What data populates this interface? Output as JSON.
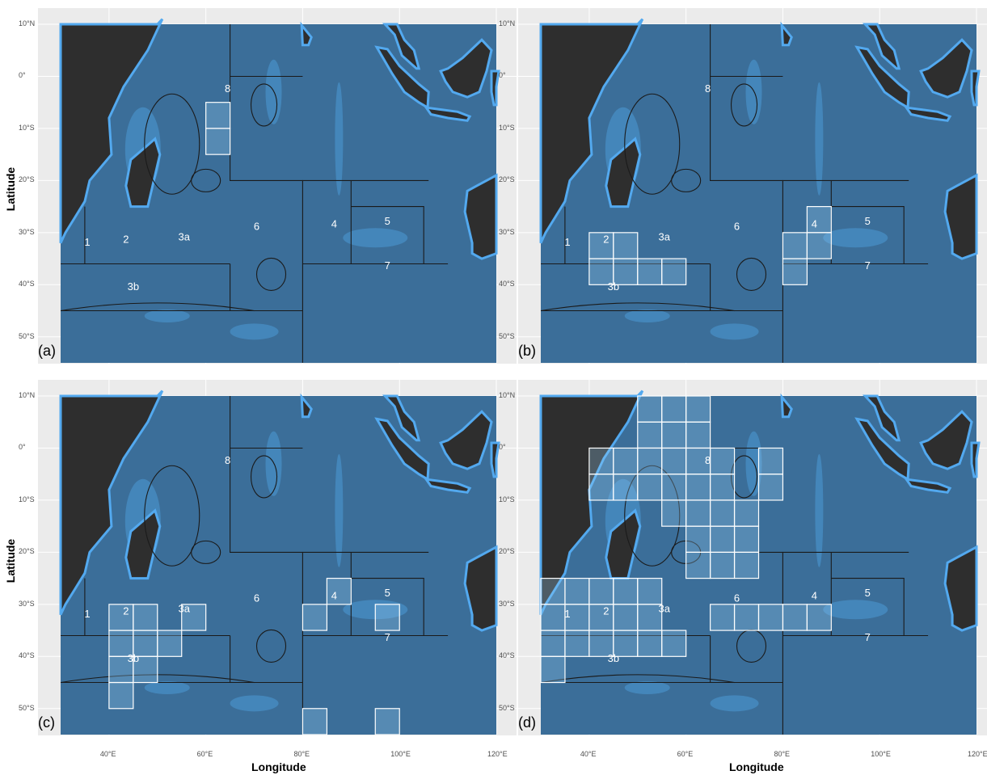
{
  "figure": {
    "x_axis_title": "Longitude",
    "y_axis_title": "Latitude",
    "lon_ticks": [
      "40°E",
      "60°E",
      "80°E",
      "100°E",
      "120°E"
    ],
    "lat_ticks": [
      "10°N",
      "0°",
      "10°S",
      "20°S",
      "30°S",
      "40°S",
      "50°S"
    ],
    "lon_range": [
      28,
      120
    ],
    "lat_range": [
      -55,
      10
    ],
    "grid": true,
    "land_color": "#2e2e2e",
    "ocean_color": "#3b6e99",
    "shallow_color": "#53a9ef",
    "cell_outline_color": "#ffffff"
  },
  "regions": [
    {
      "label": "1",
      "lon": 35.5,
      "lat": -32.5
    },
    {
      "label": "2",
      "lon": 43.5,
      "lat": -32
    },
    {
      "label": "3a",
      "lon": 55.5,
      "lat": -31.5
    },
    {
      "label": "3b",
      "lon": 45,
      "lat": -41
    },
    {
      "label": "4",
      "lon": 86.5,
      "lat": -29
    },
    {
      "label": "5",
      "lon": 97.5,
      "lat": -28.5
    },
    {
      "label": "6",
      "lon": 70.5,
      "lat": -29.5
    },
    {
      "label": "7",
      "lon": 97.5,
      "lat": -37
    },
    {
      "label": "8",
      "lon": 64.5,
      "lat": -3
    }
  ],
  "panels": [
    {
      "label": "(a)",
      "cells": [
        [
          60,
          -5
        ],
        [
          60,
          -10
        ]
      ]
    },
    {
      "label": "(b)",
      "cells": [
        [
          40,
          -30
        ],
        [
          45,
          -30
        ],
        [
          40,
          -35
        ],
        [
          45,
          -35
        ],
        [
          50,
          -35
        ],
        [
          55,
          -35
        ],
        [
          85,
          -25
        ],
        [
          80,
          -30
        ],
        [
          85,
          -30
        ],
        [
          80,
          -35
        ]
      ]
    },
    {
      "label": "(c)",
      "cells": [
        [
          40,
          -30
        ],
        [
          45,
          -30
        ],
        [
          55,
          -30
        ],
        [
          40,
          -35
        ],
        [
          45,
          -35
        ],
        [
          50,
          -35
        ],
        [
          40,
          -40
        ],
        [
          45,
          -40
        ],
        [
          40,
          -45
        ],
        [
          85,
          -25
        ],
        [
          80,
          -30
        ],
        [
          95,
          -30
        ],
        [
          80,
          -50
        ],
        [
          95,
          -50
        ]
      ]
    },
    {
      "label": "(d)",
      "cells": [
        [
          50,
          10
        ],
        [
          55,
          10
        ],
        [
          60,
          10
        ],
        [
          50,
          5
        ],
        [
          55,
          5
        ],
        [
          60,
          5
        ],
        [
          40,
          0
        ],
        [
          45,
          0
        ],
        [
          50,
          0
        ],
        [
          55,
          0
        ],
        [
          60,
          0
        ],
        [
          65,
          0
        ],
        [
          75,
          0
        ],
        [
          40,
          -5
        ],
        [
          45,
          -5
        ],
        [
          50,
          -5
        ],
        [
          55,
          -5
        ],
        [
          60,
          -5
        ],
        [
          65,
          -5
        ],
        [
          75,
          -5
        ],
        [
          55,
          -10
        ],
        [
          60,
          -10
        ],
        [
          65,
          -10
        ],
        [
          70,
          -10
        ],
        [
          60,
          -15
        ],
        [
          65,
          -15
        ],
        [
          70,
          -15
        ],
        [
          60,
          -20
        ],
        [
          65,
          -20
        ],
        [
          70,
          -20
        ],
        [
          30,
          -25
        ],
        [
          35,
          -25
        ],
        [
          40,
          -25
        ],
        [
          45,
          -25
        ],
        [
          50,
          -25
        ],
        [
          30,
          -30
        ],
        [
          35,
          -30
        ],
        [
          40,
          -30
        ],
        [
          45,
          -30
        ],
        [
          50,
          -30
        ],
        [
          65,
          -30
        ],
        [
          70,
          -30
        ],
        [
          75,
          -30
        ],
        [
          80,
          -30
        ],
        [
          85,
          -30
        ],
        [
          30,
          -35
        ],
        [
          35,
          -35
        ],
        [
          40,
          -35
        ],
        [
          45,
          -35
        ],
        [
          50,
          -35
        ],
        [
          55,
          -35
        ],
        [
          30,
          -40
        ]
      ]
    }
  ]
}
